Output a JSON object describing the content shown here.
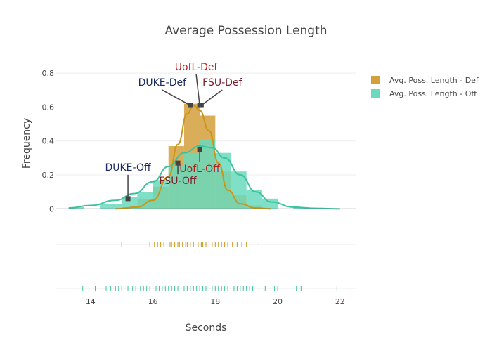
{
  "chart_data": {
    "type": "histogram",
    "title": "Average Possession Length",
    "xlabel": "Seconds",
    "ylabel": "Frequency",
    "xlim": [
      12.9,
      22.5
    ],
    "ylim": [
      -0.04,
      0.9
    ],
    "x_ticks": [
      14,
      16,
      18,
      20,
      22
    ],
    "y_ticks": [
      0,
      0.2,
      0.4,
      0.6,
      0.8
    ],
    "y_tick_labels": [
      "0",
      "0.2",
      "0.4",
      "0.6",
      "0.8"
    ],
    "grid": true,
    "legend_position": "top-right",
    "series": [
      {
        "name": "Avg. Poss. Length - Def",
        "color": "#d4a03c",
        "line_color": "#c9961a",
        "bins": [
          {
            "x0": 15,
            "x1": 15.5,
            "y": 0.01
          },
          {
            "x0": 15.5,
            "x1": 16,
            "y": 0.06
          },
          {
            "x0": 16,
            "x1": 16.5,
            "y": 0.13
          },
          {
            "x0": 16.5,
            "x1": 17,
            "y": 0.37
          },
          {
            "x0": 17,
            "x1": 17.5,
            "y": 0.62
          },
          {
            "x0": 17.5,
            "x1": 18,
            "y": 0.55
          },
          {
            "x0": 18,
            "x1": 18.5,
            "y": 0.22
          },
          {
            "x0": 18.5,
            "x1": 19,
            "y": 0.08
          },
          {
            "x0": 19,
            "x1": 19.5,
            "y": 0.02
          }
        ],
        "curve": [
          [
            14.8,
            0
          ],
          [
            15.5,
            0.01
          ],
          [
            16.0,
            0.05
          ],
          [
            16.5,
            0.19
          ],
          [
            16.8,
            0.38
          ],
          [
            17.1,
            0.56
          ],
          [
            17.3,
            0.61
          ],
          [
            17.5,
            0.58
          ],
          [
            17.8,
            0.46
          ],
          [
            18.1,
            0.27
          ],
          [
            18.4,
            0.11
          ],
          [
            18.8,
            0.03
          ],
          [
            19.3,
            0.005
          ],
          [
            19.8,
            0
          ]
        ],
        "rug": [
          15.0,
          15.9,
          16.05,
          16.15,
          16.25,
          16.35,
          16.45,
          16.55,
          16.6,
          16.7,
          16.8,
          16.85,
          16.95,
          17.05,
          17.1,
          17.2,
          17.3,
          17.35,
          17.45,
          17.55,
          17.6,
          17.7,
          17.8,
          17.9,
          18.0,
          18.1,
          18.2,
          18.3,
          18.4,
          18.55,
          18.7,
          18.85,
          19.0,
          19.4
        ]
      },
      {
        "name": "Avg. Poss. Length - Off",
        "color": "#6ad9bd",
        "line_color": "#3cc39d",
        "bins": [
          {
            "x0": 13.3,
            "x1": 13.8,
            "y": 0.01
          },
          {
            "x0": 14.3,
            "x1": 15,
            "y": 0.03
          },
          {
            "x0": 15,
            "x1": 15.5,
            "y": 0.07
          },
          {
            "x0": 15.5,
            "x1": 16,
            "y": 0.1
          },
          {
            "x0": 16,
            "x1": 16.5,
            "y": 0.17
          },
          {
            "x0": 16.5,
            "x1": 17,
            "y": 0.25
          },
          {
            "x0": 17,
            "x1": 17.5,
            "y": 0.33
          },
          {
            "x0": 17.5,
            "x1": 18,
            "y": 0.41
          },
          {
            "x0": 18,
            "x1": 18.5,
            "y": 0.33
          },
          {
            "x0": 18.5,
            "x1": 19,
            "y": 0.22
          },
          {
            "x0": 19,
            "x1": 19.5,
            "y": 0.11
          },
          {
            "x0": 19.5,
            "x1": 20,
            "y": 0.06
          },
          {
            "x0": 20.5,
            "x1": 21,
            "y": 0.01
          }
        ],
        "curve": [
          [
            13.3,
            0.005
          ],
          [
            14.0,
            0.02
          ],
          [
            14.8,
            0.05
          ],
          [
            15.4,
            0.09
          ],
          [
            16.0,
            0.16
          ],
          [
            16.5,
            0.25
          ],
          [
            17.0,
            0.33
          ],
          [
            17.5,
            0.37
          ],
          [
            17.9,
            0.36
          ],
          [
            18.3,
            0.3
          ],
          [
            18.8,
            0.2
          ],
          [
            19.3,
            0.1
          ],
          [
            19.8,
            0.04
          ],
          [
            20.5,
            0.01
          ],
          [
            21.2,
            0.003
          ],
          [
            22.0,
            0
          ]
        ],
        "rug": [
          13.25,
          13.75,
          14.15,
          14.5,
          14.65,
          14.8,
          14.9,
          15.0,
          15.2,
          15.35,
          15.45,
          15.6,
          15.7,
          15.8,
          15.9,
          16.0,
          16.1,
          16.2,
          16.3,
          16.4,
          16.5,
          16.6,
          16.7,
          16.8,
          16.9,
          17.0,
          17.1,
          17.2,
          17.3,
          17.4,
          17.5,
          17.6,
          17.7,
          17.8,
          17.9,
          18.0,
          18.1,
          18.2,
          18.3,
          18.4,
          18.5,
          18.6,
          18.7,
          18.8,
          18.9,
          19.0,
          19.1,
          19.2,
          19.4,
          19.6,
          19.9,
          20.0,
          20.6,
          20.75,
          21.9
        ]
      }
    ],
    "annotations": [
      {
        "text": "UofL-Def",
        "x": 17.5,
        "y": 0.61,
        "color": "#b71c1c",
        "ax": -5,
        "ay": -50
      },
      {
        "text": "DUKE-Def",
        "x": 17.2,
        "y": 0.61,
        "color": "#1a2a5e",
        "ax": -40,
        "ay": -28
      },
      {
        "text": "FSU-Def",
        "x": 17.55,
        "y": 0.61,
        "color": "#7a1f2b",
        "ax": 30,
        "ay": -28
      },
      {
        "text": "UofL-Off",
        "x": 17.5,
        "y": 0.35,
        "color": "#b71c1c",
        "ax": 0,
        "ay": 32
      },
      {
        "text": "DUKE-Off",
        "x": 15.2,
        "y": 0.06,
        "color": "#1a2a5e",
        "ax": 0,
        "ay": -40
      },
      {
        "text": "FSU-Off",
        "x": 16.8,
        "y": 0.27,
        "color": "#7a1f2b",
        "ax": 0,
        "ay": 30
      }
    ]
  }
}
